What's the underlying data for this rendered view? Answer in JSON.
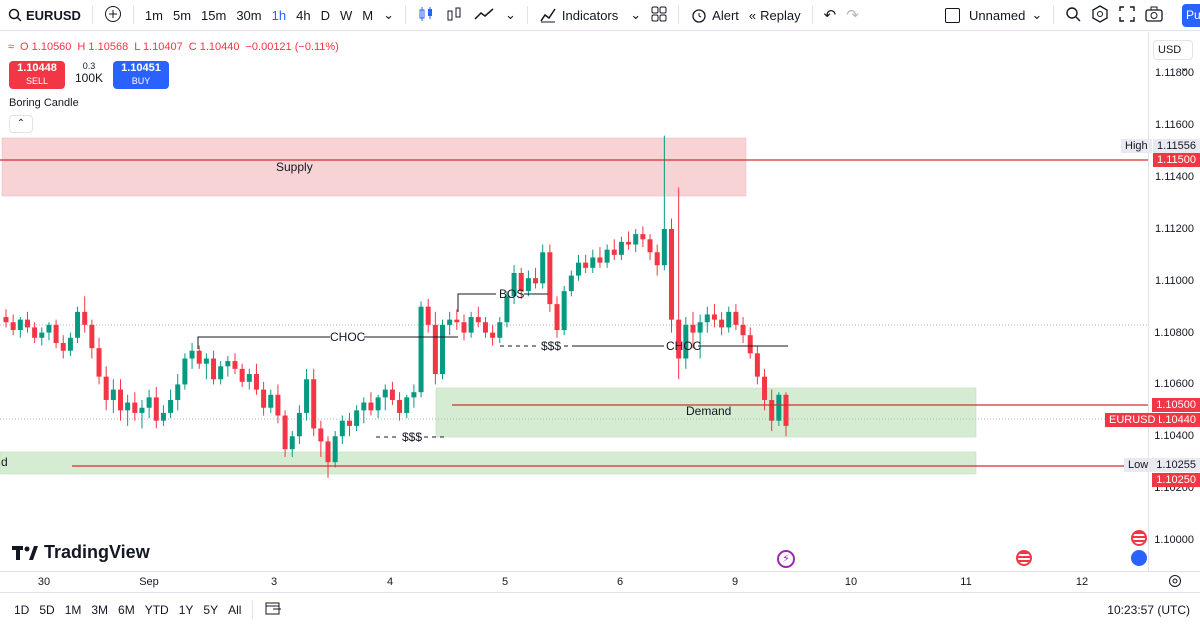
{
  "toolbar": {
    "symbol": "EURUSD",
    "timeframes": [
      "1m",
      "5m",
      "15m",
      "30m",
      "1h",
      "4h",
      "D",
      "W",
      "M"
    ],
    "active_timeframe": "1h",
    "indicators_label": "Indicators",
    "alert_label": "Alert",
    "replay_label": "Replay",
    "layout_name": "Unnamed",
    "publish_label": "Pu"
  },
  "legend": {
    "open": "O 1.10560",
    "high": "H 1.10568",
    "low": "L 1.10407",
    "close": "C 1.10440",
    "change": "−0.00121 (−0.11%)",
    "sell_price": "1.10448",
    "sell_label": "SELL",
    "spread": "0.3",
    "quantity": "100K",
    "buy_price": "1.10451",
    "buy_label": "BUY",
    "indicator": "Boring Candle"
  },
  "currency_selector": "USD",
  "logo_text": "TradingView",
  "annotations": {
    "supply": "Supply",
    "demand": "Demand",
    "demand_left_fragment": "d",
    "choc_1": "CHOC",
    "choc_2": "CHOC",
    "bos": "BOS",
    "liquidity_1": "$$$",
    "liquidity_2": "$$$"
  },
  "price_axis": {
    "ticks": [
      "1.11800",
      "1.11600",
      "1.11400",
      "1.11200",
      "1.11000",
      "1.10800",
      "1.10600",
      "1.10400",
      "1.10200",
      "1.10000"
    ],
    "labels": {
      "high_tag": "High",
      "high_value": "1.11556",
      "supply_line": "1.11500",
      "demand_line": "1.10500",
      "symbol_tag": "EURUSD",
      "last_price": "1.10440",
      "low_tag": "Low",
      "low_value": "1.10255",
      "low_line": "1.10250"
    }
  },
  "time_axis": [
    "30",
    "Sep",
    "3",
    "4",
    "5",
    "6",
    "9",
    "10",
    "11",
    "12"
  ],
  "bottom_bar": {
    "ranges": [
      "1D",
      "5D",
      "1M",
      "3M",
      "6M",
      "YTD",
      "1Y",
      "5Y",
      "All"
    ],
    "clock": "10:23:57 (UTC)"
  },
  "colors": {
    "up": "#089981",
    "down": "#f23645",
    "supply_zone": "#f7d3d6",
    "demand_zone": "#d6ecd2",
    "accent": "#2962ff"
  },
  "chart_data": {
    "type": "candlestick",
    "symbol": "EURUSD",
    "interval": "1h",
    "ylim": [
      1.0988,
      1.1196
    ],
    "levels": [
      {
        "name": "Supply",
        "value": 1.115
      },
      {
        "name": "Demand",
        "value": 1.105
      },
      {
        "name": "Low",
        "value": 1.1025
      }
    ],
    "candles": [
      [
        1.1086,
        1.1089,
        1.1082,
        1.1084
      ],
      [
        1.1084,
        1.1087,
        1.1079,
        1.1081
      ],
      [
        1.1081,
        1.1086,
        1.1078,
        1.1085
      ],
      [
        1.1085,
        1.1088,
        1.108,
        1.1082
      ],
      [
        1.1082,
        1.1084,
        1.1076,
        1.1078
      ],
      [
        1.1078,
        1.1082,
        1.1075,
        1.108
      ],
      [
        1.108,
        1.1084,
        1.1077,
        1.1083
      ],
      [
        1.1083,
        1.1085,
        1.1074,
        1.1076
      ],
      [
        1.1076,
        1.1079,
        1.107,
        1.1073
      ],
      [
        1.1073,
        1.108,
        1.1071,
        1.1078
      ],
      [
        1.1078,
        1.109,
        1.1076,
        1.1088
      ],
      [
        1.1088,
        1.1094,
        1.108,
        1.1083
      ],
      [
        1.1083,
        1.1085,
        1.107,
        1.1074
      ],
      [
        1.1074,
        1.1078,
        1.106,
        1.1063
      ],
      [
        1.1063,
        1.1067,
        1.105,
        1.1054
      ],
      [
        1.1054,
        1.1062,
        1.1049,
        1.1058
      ],
      [
        1.1058,
        1.1062,
        1.1046,
        1.105
      ],
      [
        1.105,
        1.1056,
        1.1044,
        1.1053
      ],
      [
        1.1053,
        1.1057,
        1.1046,
        1.1049
      ],
      [
        1.1049,
        1.1054,
        1.1043,
        1.1051
      ],
      [
        1.1051,
        1.1058,
        1.1047,
        1.1055
      ],
      [
        1.1055,
        1.1059,
        1.1043,
        1.1046
      ],
      [
        1.1046,
        1.1052,
        1.1044,
        1.1049
      ],
      [
        1.1049,
        1.1058,
        1.1047,
        1.1054
      ],
      [
        1.1054,
        1.1064,
        1.105,
        1.106
      ],
      [
        1.106,
        1.1072,
        1.1058,
        1.107
      ],
      [
        1.107,
        1.1076,
        1.1066,
        1.1073
      ],
      [
        1.1073,
        1.1075,
        1.1066,
        1.1068
      ],
      [
        1.1068,
        1.1072,
        1.1062,
        1.107
      ],
      [
        1.107,
        1.1073,
        1.106,
        1.1062
      ],
      [
        1.1062,
        1.1069,
        1.106,
        1.1067
      ],
      [
        1.1067,
        1.1071,
        1.1063,
        1.1069
      ],
      [
        1.1069,
        1.1072,
        1.1064,
        1.1066
      ],
      [
        1.1066,
        1.1068,
        1.1059,
        1.1061
      ],
      [
        1.1061,
        1.1066,
        1.1058,
        1.1064
      ],
      [
        1.1064,
        1.1068,
        1.1056,
        1.1058
      ],
      [
        1.1058,
        1.1061,
        1.1048,
        1.1051
      ],
      [
        1.1051,
        1.1058,
        1.1049,
        1.1056
      ],
      [
        1.1056,
        1.106,
        1.1045,
        1.1048
      ],
      [
        1.1048,
        1.105,
        1.1032,
        1.1035
      ],
      [
        1.1035,
        1.1042,
        1.1032,
        1.104
      ],
      [
        1.104,
        1.1052,
        1.1037,
        1.1049
      ],
      [
        1.1049,
        1.1066,
        1.1046,
        1.1062
      ],
      [
        1.1062,
        1.1066,
        1.104,
        1.1043
      ],
      [
        1.1043,
        1.1046,
        1.1032,
        1.1038
      ],
      [
        1.1038,
        1.104,
        1.1024,
        1.103
      ],
      [
        1.103,
        1.1042,
        1.1028,
        1.104
      ],
      [
        1.104,
        1.1048,
        1.1037,
        1.1046
      ],
      [
        1.1046,
        1.1049,
        1.104,
        1.1044
      ],
      [
        1.1044,
        1.1052,
        1.1042,
        1.105
      ],
      [
        1.105,
        1.1055,
        1.1045,
        1.1053
      ],
      [
        1.1053,
        1.1057,
        1.1048,
        1.105
      ],
      [
        1.105,
        1.1056,
        1.1047,
        1.1055
      ],
      [
        1.1055,
        1.106,
        1.105,
        1.1058
      ],
      [
        1.1058,
        1.1061,
        1.1052,
        1.1054
      ],
      [
        1.1054,
        1.1057,
        1.1046,
        1.1049
      ],
      [
        1.1049,
        1.1056,
        1.1047,
        1.1055
      ],
      [
        1.1055,
        1.106,
        1.1051,
        1.1057
      ],
      [
        1.1057,
        1.1092,
        1.1055,
        1.109
      ],
      [
        1.109,
        1.1093,
        1.108,
        1.1083
      ],
      [
        1.1083,
        1.1088,
        1.106,
        1.1064
      ],
      [
        1.1064,
        1.1085,
        1.1062,
        1.1083
      ],
      [
        1.1083,
        1.1088,
        1.1079,
        1.1085
      ],
      [
        1.1085,
        1.1089,
        1.1081,
        1.1084
      ],
      [
        1.1084,
        1.1087,
        1.1077,
        1.108
      ],
      [
        1.108,
        1.1088,
        1.1078,
        1.1086
      ],
      [
        1.1086,
        1.109,
        1.1082,
        1.1084
      ],
      [
        1.1084,
        1.1086,
        1.1078,
        1.108
      ],
      [
        1.108,
        1.1083,
        1.1075,
        1.1078
      ],
      [
        1.1078,
        1.1086,
        1.1076,
        1.1084
      ],
      [
        1.1084,
        1.1096,
        1.1082,
        1.1094
      ],
      [
        1.1094,
        1.1106,
        1.1091,
        1.1103
      ],
      [
        1.1103,
        1.1105,
        1.1093,
        1.1096
      ],
      [
        1.1096,
        1.1104,
        1.1094,
        1.1101
      ],
      [
        1.1101,
        1.1105,
        1.1097,
        1.1099
      ],
      [
        1.1099,
        1.1114,
        1.1097,
        1.1111
      ],
      [
        1.1111,
        1.1114,
        1.1088,
        1.1091
      ],
      [
        1.1091,
        1.1094,
        1.1078,
        1.1081
      ],
      [
        1.1081,
        1.1098,
        1.1079,
        1.1096
      ],
      [
        1.1096,
        1.1104,
        1.1094,
        1.1102
      ],
      [
        1.1102,
        1.111,
        1.11,
        1.1107
      ],
      [
        1.1107,
        1.111,
        1.1103,
        1.1105
      ],
      [
        1.1105,
        1.1112,
        1.1103,
        1.1109
      ],
      [
        1.1109,
        1.1113,
        1.1105,
        1.1107
      ],
      [
        1.1107,
        1.1114,
        1.1105,
        1.1112
      ],
      [
        1.1112,
        1.1116,
        1.1108,
        1.111
      ],
      [
        1.111,
        1.1117,
        1.1108,
        1.1115
      ],
      [
        1.1115,
        1.1119,
        1.1112,
        1.1114
      ],
      [
        1.1114,
        1.112,
        1.1111,
        1.1118
      ],
      [
        1.1118,
        1.1121,
        1.1113,
        1.1116
      ],
      [
        1.1116,
        1.1118,
        1.1108,
        1.1111
      ],
      [
        1.1111,
        1.1114,
        1.1102,
        1.1106
      ],
      [
        1.1106,
        1.1156,
        1.1104,
        1.112
      ],
      [
        1.112,
        1.1124,
        1.108,
        1.1085
      ],
      [
        1.1085,
        1.1136,
        1.1062,
        1.107
      ],
      [
        1.107,
        1.1086,
        1.1066,
        1.1083
      ],
      [
        1.1083,
        1.1088,
        1.1074,
        1.108
      ],
      [
        1.108,
        1.1087,
        1.107,
        1.1084
      ],
      [
        1.1084,
        1.109,
        1.108,
        1.1087
      ],
      [
        1.1087,
        1.1091,
        1.1082,
        1.1085
      ],
      [
        1.1085,
        1.1088,
        1.1079,
        1.1082
      ],
      [
        1.1082,
        1.109,
        1.108,
        1.1088
      ],
      [
        1.1088,
        1.1091,
        1.1081,
        1.1083
      ],
      [
        1.1083,
        1.1086,
        1.1076,
        1.1079
      ],
      [
        1.1079,
        1.1082,
        1.107,
        1.1072
      ],
      [
        1.1072,
        1.1075,
        1.106,
        1.1063
      ],
      [
        1.1063,
        1.1066,
        1.105,
        1.1054
      ],
      [
        1.1054,
        1.1058,
        1.1042,
        1.1046
      ],
      [
        1.1046,
        1.1057,
        1.1044,
        1.1056
      ],
      [
        1.1056,
        1.1057,
        1.104,
        1.1044
      ]
    ]
  }
}
